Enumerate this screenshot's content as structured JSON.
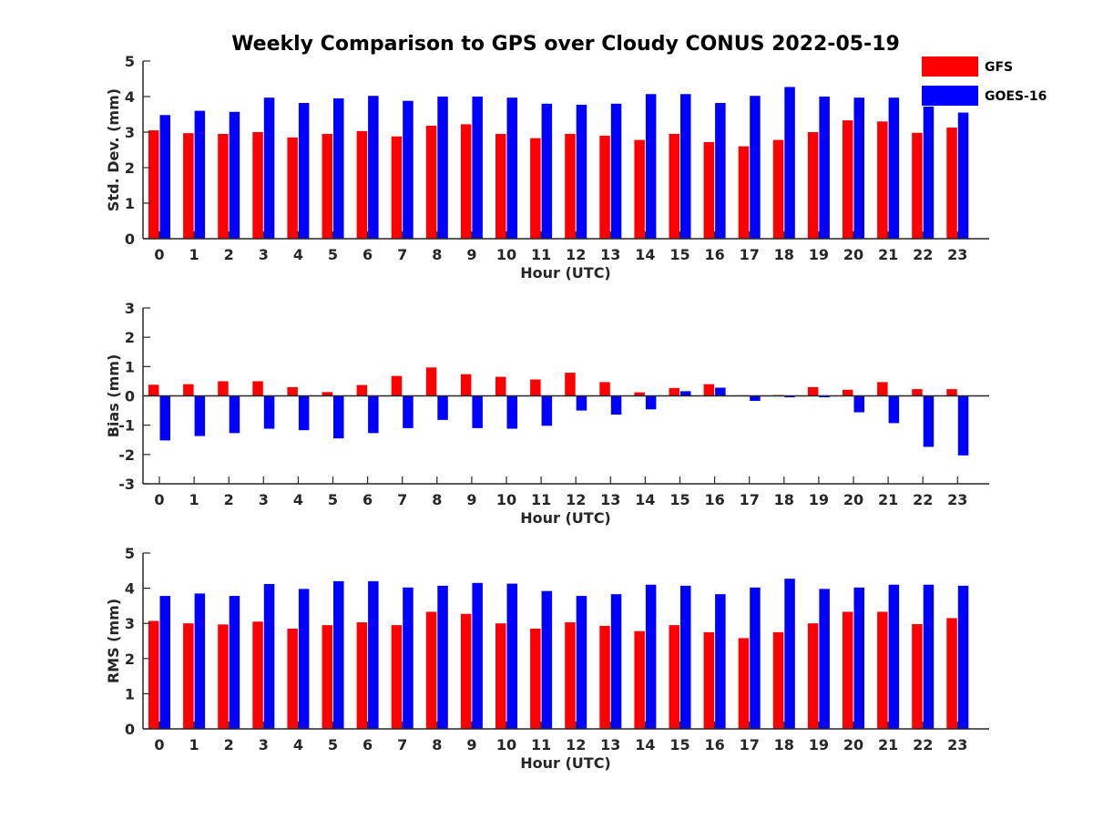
{
  "chart_data": {
    "type": "bar",
    "title": "Weekly Comparison to GPS over Cloudy CONUS 2022-05-19",
    "categories": [
      "0",
      "1",
      "2",
      "3",
      "4",
      "5",
      "6",
      "7",
      "8",
      "9",
      "10",
      "11",
      "12",
      "13",
      "14",
      "15",
      "16",
      "17",
      "18",
      "19",
      "20",
      "21",
      "22",
      "23"
    ],
    "legend": {
      "placement": "top-right",
      "entries": [
        {
          "name": "GFS",
          "color": "#ff0000"
        },
        {
          "name": "GOES-16",
          "color": "#0000ff"
        }
      ]
    },
    "panels": [
      {
        "id": "std",
        "ylabel": "Std. Dev. (mm)",
        "xlabel": "Hour (UTC)",
        "ylim": [
          0,
          5
        ],
        "yticks": [
          "0",
          "1",
          "2",
          "3",
          "4",
          "5"
        ],
        "series": [
          {
            "name": "GFS",
            "color": "#ff0000",
            "values": [
              3.05,
              2.97,
              2.95,
              3.0,
              2.85,
              2.95,
              3.03,
              2.88,
              3.18,
              3.22,
              2.95,
              2.83,
              2.95,
              2.9,
              2.78,
              2.95,
              2.72,
              2.6,
              2.78,
              3.0,
              3.33,
              3.3,
              2.98,
              3.13
            ]
          },
          {
            "name": "GOES-16",
            "color": "#0000ff",
            "values": [
              3.48,
              3.6,
              3.57,
              3.97,
              3.82,
              3.95,
              4.02,
              3.88,
              4.0,
              4.0,
              3.97,
              3.8,
              3.77,
              3.8,
              4.07,
              4.07,
              3.82,
              4.02,
              4.27,
              4.0,
              3.97,
              3.97,
              3.72,
              3.55
            ]
          }
        ]
      },
      {
        "id": "bias",
        "ylabel": "Bias (mm)",
        "xlabel": "Hour (UTC)",
        "ylim": [
          -3,
          3
        ],
        "yticks": [
          "-3",
          "-2",
          "-1",
          "0",
          "1",
          "2",
          "3"
        ],
        "series": [
          {
            "name": "GFS",
            "color": "#ff0000",
            "values": [
              0.38,
              0.4,
              0.5,
              0.5,
              0.3,
              0.13,
              0.37,
              0.68,
              0.97,
              0.74,
              0.65,
              0.56,
              0.79,
              0.47,
              0.12,
              0.27,
              0.4,
              0.02,
              0.03,
              0.3,
              0.21,
              0.47,
              0.23,
              0.23
            ]
          },
          {
            "name": "GOES-16",
            "color": "#0000ff",
            "values": [
              -1.52,
              -1.37,
              -1.27,
              -1.12,
              -1.17,
              -1.45,
              -1.27,
              -1.1,
              -0.82,
              -1.1,
              -1.12,
              -1.02,
              -0.5,
              -0.64,
              -0.46,
              0.16,
              0.28,
              -0.17,
              -0.05,
              -0.05,
              -0.56,
              -0.93,
              -1.74,
              -2.03
            ]
          }
        ]
      },
      {
        "id": "rms",
        "ylabel": "RMS (mm)",
        "xlabel": "Hour (UTC)",
        "ylim": [
          0,
          5
        ],
        "yticks": [
          "0",
          "1",
          "2",
          "3",
          "4",
          "5"
        ],
        "series": [
          {
            "name": "GFS",
            "color": "#ff0000",
            "values": [
              3.07,
              3.0,
              2.97,
              3.05,
              2.85,
              2.95,
              3.03,
              2.95,
              3.33,
              3.27,
              3.0,
              2.85,
              3.03,
              2.93,
              2.78,
              2.95,
              2.75,
              2.58,
              2.75,
              3.0,
              3.33,
              3.33,
              2.98,
              3.15
            ]
          },
          {
            "name": "GOES-16",
            "color": "#0000ff",
            "values": [
              3.78,
              3.85,
              3.78,
              4.12,
              3.98,
              4.2,
              4.2,
              4.02,
              4.07,
              4.15,
              4.13,
              3.92,
              3.78,
              3.83,
              4.1,
              4.07,
              3.83,
              4.02,
              4.27,
              3.98,
              4.02,
              4.1,
              4.1,
              4.07
            ]
          }
        ]
      }
    ]
  }
}
